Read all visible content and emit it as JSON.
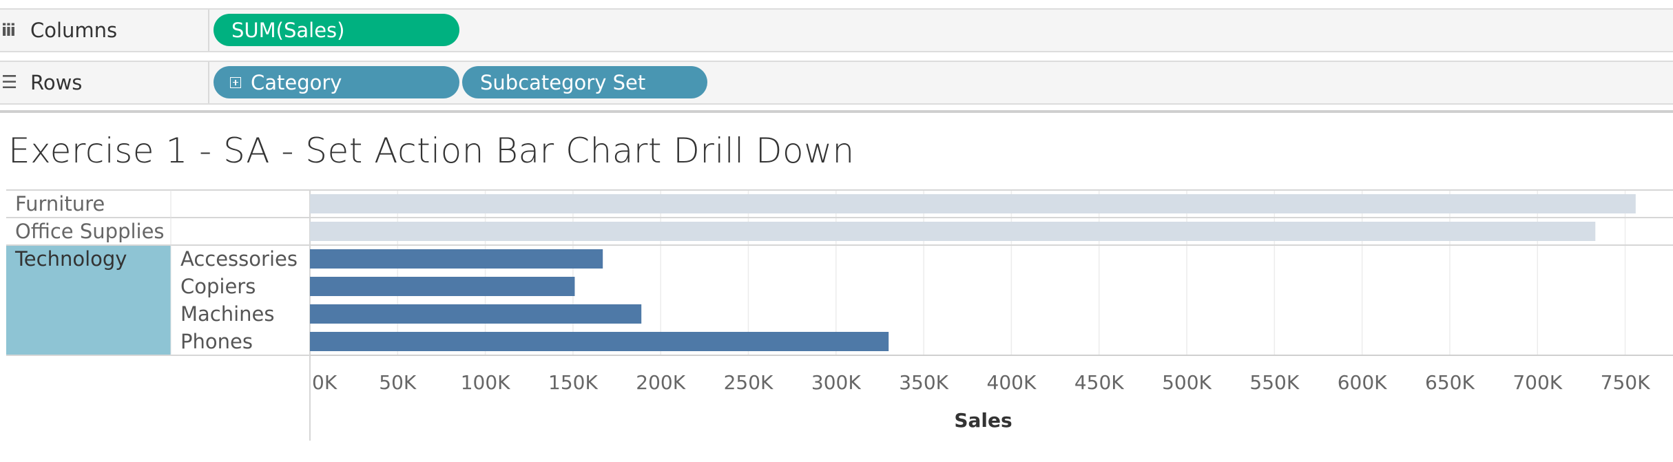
{
  "shelves": {
    "columns": {
      "label": "Columns",
      "icon": "columns-icon",
      "pills": [
        "SUM(Sales)"
      ]
    },
    "rows": {
      "label": "Rows",
      "icon": "rows-icon",
      "pills": [
        "Category",
        "Subcategory Set"
      ]
    }
  },
  "sheet_title": "Exercise 1 - SA - Set Action Bar Chart Drill Down",
  "colors": {
    "measure_pill": "#00b180",
    "dimension_pill": "#4996b2",
    "bar_highlight": "#4e79a7",
    "bar_dimmed": "#d5dde6",
    "technology_header": "#8ec4d4"
  },
  "chart_data": {
    "type": "bar",
    "orientation": "horizontal",
    "xlabel": "Sales",
    "xlim": [
      0,
      760000
    ],
    "xticks": [
      0,
      50000,
      100000,
      150000,
      200000,
      250000,
      300000,
      350000,
      400000,
      450000,
      500000,
      550000,
      600000,
      650000,
      700000,
      750000
    ],
    "xtick_labels": [
      "0K",
      "50K",
      "100K",
      "150K",
      "200K",
      "250K",
      "300K",
      "350K",
      "400K",
      "450K",
      "500K",
      "550K",
      "600K",
      "650K",
      "700K",
      "750K"
    ],
    "grid": true,
    "rows": [
      {
        "category": "Furniture",
        "subcategory": "",
        "value": 756000,
        "highlighted": false
      },
      {
        "category": "Office Supplies",
        "subcategory": "",
        "value": 733000,
        "highlighted": false
      },
      {
        "category": "Technology",
        "subcategory": "Accessories",
        "value": 167000,
        "highlighted": true
      },
      {
        "category": "Technology",
        "subcategory": "Copiers",
        "value": 151000,
        "highlighted": true
      },
      {
        "category": "Technology",
        "subcategory": "Machines",
        "value": 189000,
        "highlighted": true
      },
      {
        "category": "Technology",
        "subcategory": "Phones",
        "value": 330000,
        "highlighted": true
      }
    ]
  }
}
